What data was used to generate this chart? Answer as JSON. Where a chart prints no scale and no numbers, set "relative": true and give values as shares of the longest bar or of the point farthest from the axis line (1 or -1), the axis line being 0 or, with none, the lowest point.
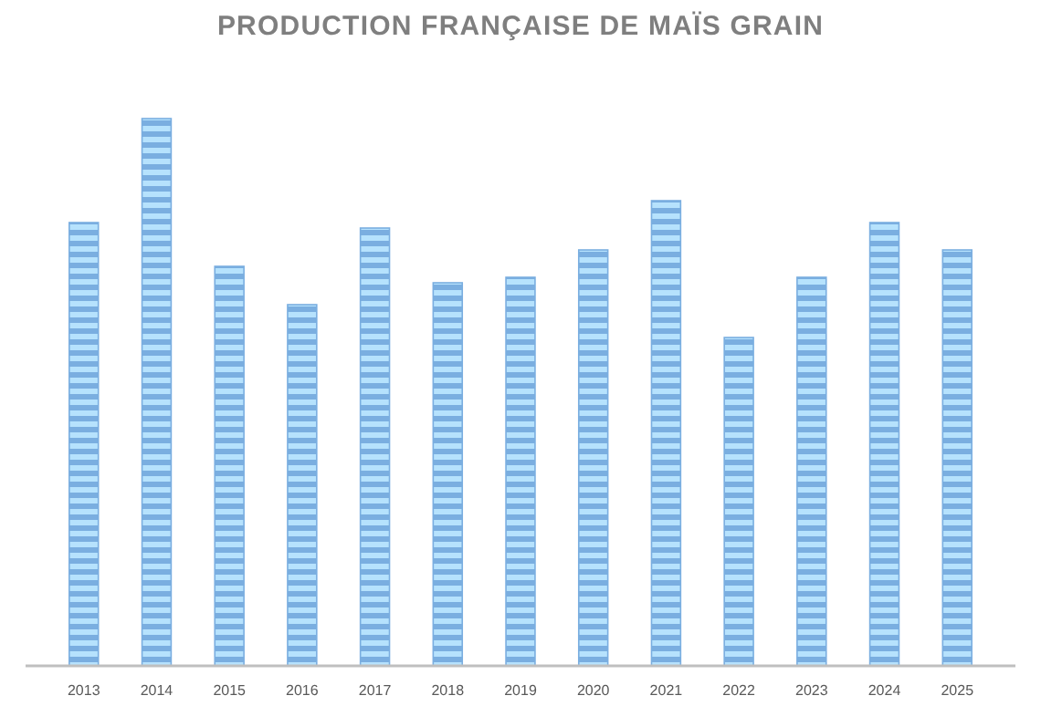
{
  "chart_data": {
    "type": "bar",
    "title": "PRODUCTION FRANÇAISE DE MAÏS GRAIN",
    "relative": true,
    "categories": [
      "2013",
      "2014",
      "2015",
      "2016",
      "2017",
      "2018",
      "2019",
      "2020",
      "2021",
      "2022",
      "2023",
      "2024",
      "2025"
    ],
    "values": [
      0.81,
      1,
      0.73,
      0.66,
      0.8,
      0.7,
      0.71,
      0.76,
      0.85,
      0.6,
      0.71,
      0.81,
      0.76
    ],
    "color": "#7aaee0"
  }
}
